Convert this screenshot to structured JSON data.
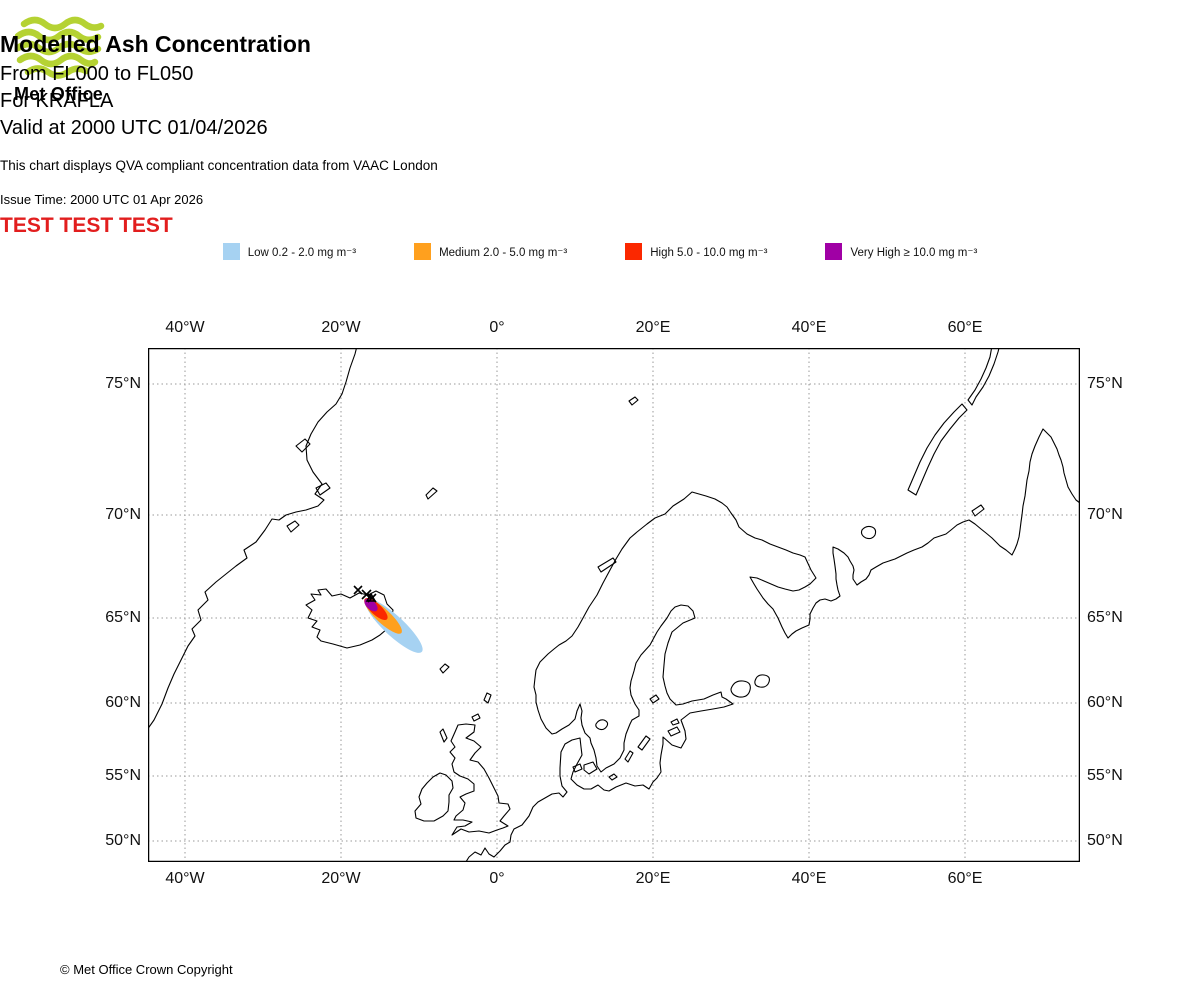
{
  "branding": {
    "logo_text": "Met Office"
  },
  "header": {
    "title": "Modelled Ash Concentration",
    "subtitles": [
      "From FL000 to FL050",
      "For KRAFLA",
      "Valid at 2000 UTC 01/04/2026"
    ],
    "description": "This chart displays QVA compliant concentration data from VAAC London",
    "issue_time": "Issue Time: 2000 UTC 01 Apr 2026",
    "test_banner": "TEST TEST TEST"
  },
  "legend": {
    "items": [
      {
        "label": "Low 0.2 - 2.0 mg m⁻³",
        "color": "#A6D2F2"
      },
      {
        "label": "Medium 2.0 - 5.0 mg m⁻³",
        "color": "#FFA01E"
      },
      {
        "label": "High 5.0 - 10.0 mg m⁻³",
        "color": "#FB2800"
      },
      {
        "label": "Very High  ≥  10.0 mg m⁻³",
        "color": "#A000A5"
      }
    ]
  },
  "map": {
    "lon_labels": [
      "40°W",
      "20°W",
      "0°",
      "20°E",
      "40°E",
      "60°E"
    ],
    "lat_labels": [
      "75°N",
      "70°N",
      "65°N",
      "60°N",
      "55°N",
      "50°N"
    ]
  },
  "colors": {
    "test_banner": "#E21E1E",
    "logo_green": "#B5D233"
  },
  "footer": {
    "copyright": "© Met Office Crown Copyright"
  }
}
